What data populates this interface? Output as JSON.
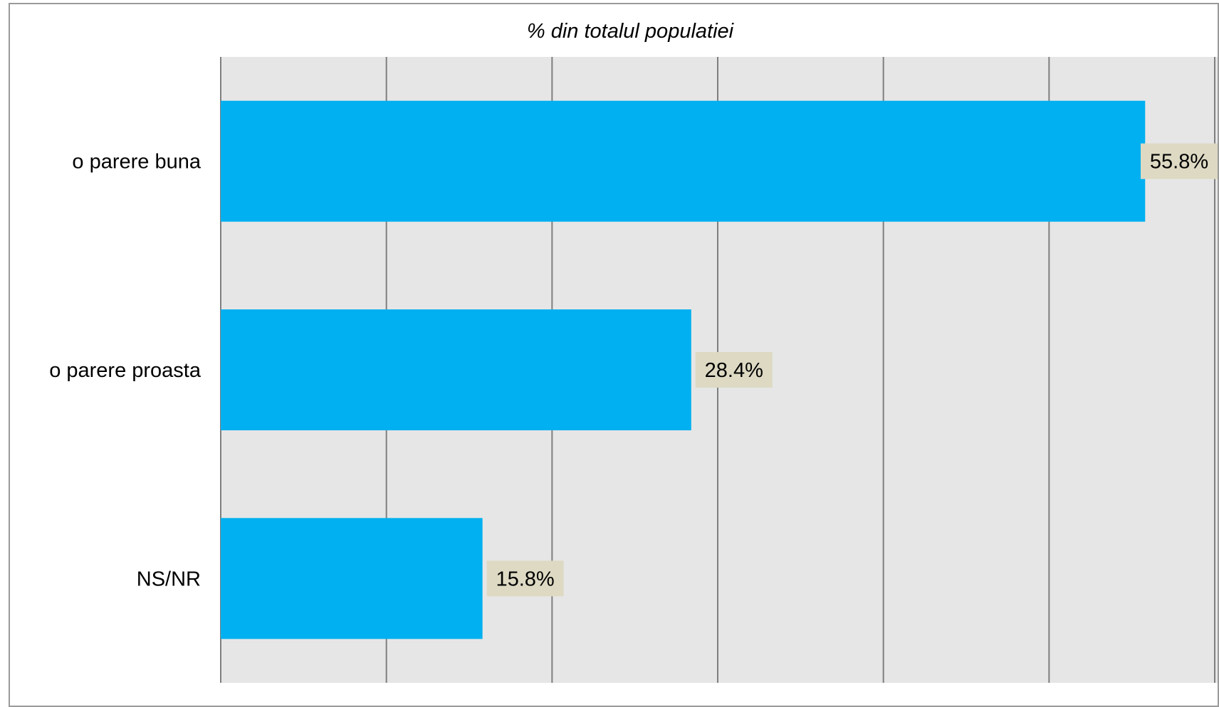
{
  "chart_data": {
    "type": "bar",
    "orientation": "horizontal",
    "title": "% din totalul populatiei",
    "categories": [
      "o parere buna",
      "o parere proasta",
      "NS/NR"
    ],
    "values": [
      55.8,
      28.4,
      15.8
    ],
    "data_labels": [
      "55.8%",
      "28.4%",
      "15.8%"
    ],
    "xlim": [
      0,
      60
    ],
    "gridlines": "vertical",
    "legend": "none",
    "colors": {
      "bar": "#00b0f0",
      "plot_background": "#e6e6e6",
      "gridline": "#7f7f7f",
      "label_background": "#ddd9c3"
    }
  }
}
